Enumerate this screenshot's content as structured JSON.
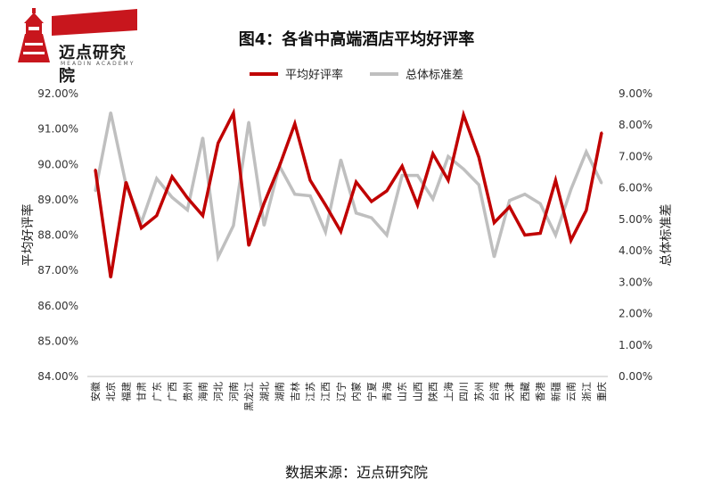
{
  "logo": {
    "name": "迈点研究院",
    "subtitle": "MEADIN ACADEMY",
    "colors": {
      "red": "#c8161d",
      "dark": "#1a1a1a"
    }
  },
  "source": "数据来源：迈点研究院",
  "chart_data": {
    "type": "line",
    "title": "图4：各省中高端酒店平均好评率",
    "categories": [
      "安徽",
      "北京",
      "福建",
      "甘肃",
      "广东",
      "广西",
      "贵州",
      "海南",
      "河北",
      "河南",
      "黑龙江",
      "湖北",
      "湖南",
      "吉林",
      "江苏",
      "江西",
      "辽宁",
      "内蒙",
      "宁夏",
      "青海",
      "山东",
      "山西",
      "陕西",
      "上海",
      "四川",
      "苏州",
      "台湾",
      "天津",
      "西藏",
      "香港",
      "新疆",
      "云南",
      "浙江",
      "重庆"
    ],
    "series": [
      {
        "name": "平均好评率",
        "axis": "left",
        "color": "#c00000",
        "values": [
          89.85,
          86.8,
          89.5,
          88.2,
          88.55,
          89.65,
          89.05,
          88.55,
          90.6,
          91.45,
          87.7,
          88.9,
          89.95,
          91.15,
          89.55,
          88.85,
          88.1,
          89.5,
          88.95,
          89.25,
          89.95,
          88.85,
          90.3,
          89.55,
          91.4,
          90.2,
          88.35,
          88.8,
          88.0,
          88.05,
          89.55,
          87.85,
          88.7,
          90.9
        ]
      },
      {
        "name": "总体标准差",
        "axis": "right",
        "color": "#bfbfbf",
        "values": [
          5.9,
          8.4,
          6.1,
          4.9,
          6.3,
          5.7,
          5.3,
          7.6,
          3.8,
          4.8,
          8.1,
          4.8,
          6.7,
          5.8,
          5.75,
          4.6,
          6.9,
          5.2,
          5.05,
          4.5,
          6.4,
          6.4,
          5.65,
          7.0,
          6.6,
          6.1,
          3.8,
          5.6,
          5.8,
          5.5,
          4.5,
          5.95,
          7.15,
          6.15
        ]
      }
    ],
    "ylabel_left": "平均好评率",
    "ylabel_right": "总体标准差",
    "ylim_left": [
      84.0,
      92.0
    ],
    "ylim_right": [
      0.0,
      9.0
    ],
    "yticks_left": [
      "84.00%",
      "85.00%",
      "86.00%",
      "87.00%",
      "88.00%",
      "89.00%",
      "90.00%",
      "91.00%",
      "92.00%"
    ],
    "yticks_right": [
      "0.00%",
      "1.00%",
      "2.00%",
      "3.00%",
      "4.00%",
      "5.00%",
      "6.00%",
      "7.00%",
      "8.00%",
      "9.00%"
    ],
    "grid": false,
    "legend_position": "top"
  }
}
